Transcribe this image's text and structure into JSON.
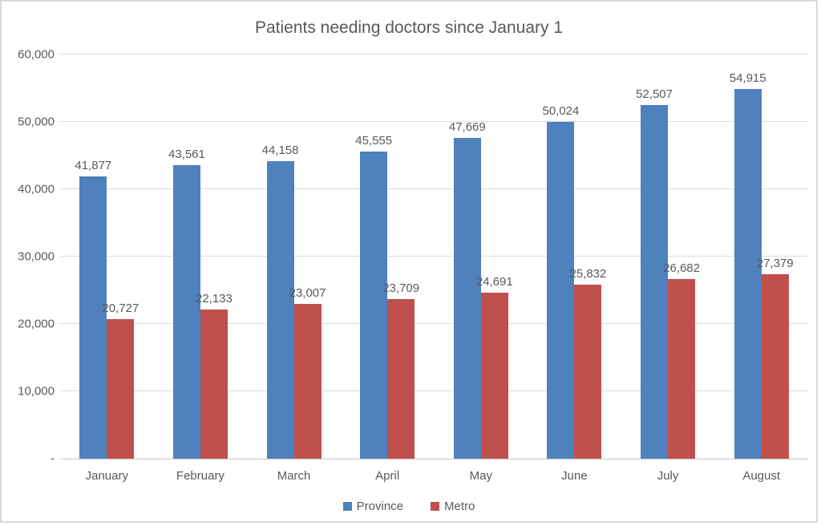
{
  "chart_data": {
    "type": "bar",
    "title": "Patients needing doctors since January 1",
    "categories": [
      "January",
      "February",
      "March",
      "April",
      "May",
      "June",
      "July",
      "August"
    ],
    "series": [
      {
        "name": "Province",
        "color": "#4f81bd",
        "values": [
          41877,
          43561,
          44158,
          45555,
          47669,
          50024,
          52507,
          54915
        ],
        "labels": [
          "41,877",
          "43,561",
          "44,158",
          "45,555",
          "47,669",
          "50,024",
          "52,507",
          "54,915"
        ]
      },
      {
        "name": "Metro",
        "color": "#c0504d",
        "values": [
          20727,
          22133,
          23007,
          23709,
          24691,
          25832,
          26682,
          27379
        ],
        "labels": [
          "20,727",
          "22,133",
          "23,007",
          "23,709",
          "24,691",
          "25,832",
          "26,682",
          "27,379"
        ]
      }
    ],
    "y_axis": {
      "min": 0,
      "max": 60000,
      "step": 10000,
      "tick_labels": [
        {
          "value": 0,
          "label": "-"
        },
        {
          "value": 10000,
          "label": "10,000"
        },
        {
          "value": 20000,
          "label": "20,000"
        },
        {
          "value": 30000,
          "label": "30,000"
        },
        {
          "value": 40000,
          "label": "40,000"
        },
        {
          "value": 50000,
          "label": "50,000"
        },
        {
          "value": 60000,
          "label": "60,000"
        }
      ]
    },
    "grid": true,
    "legend_position": "bottom"
  }
}
